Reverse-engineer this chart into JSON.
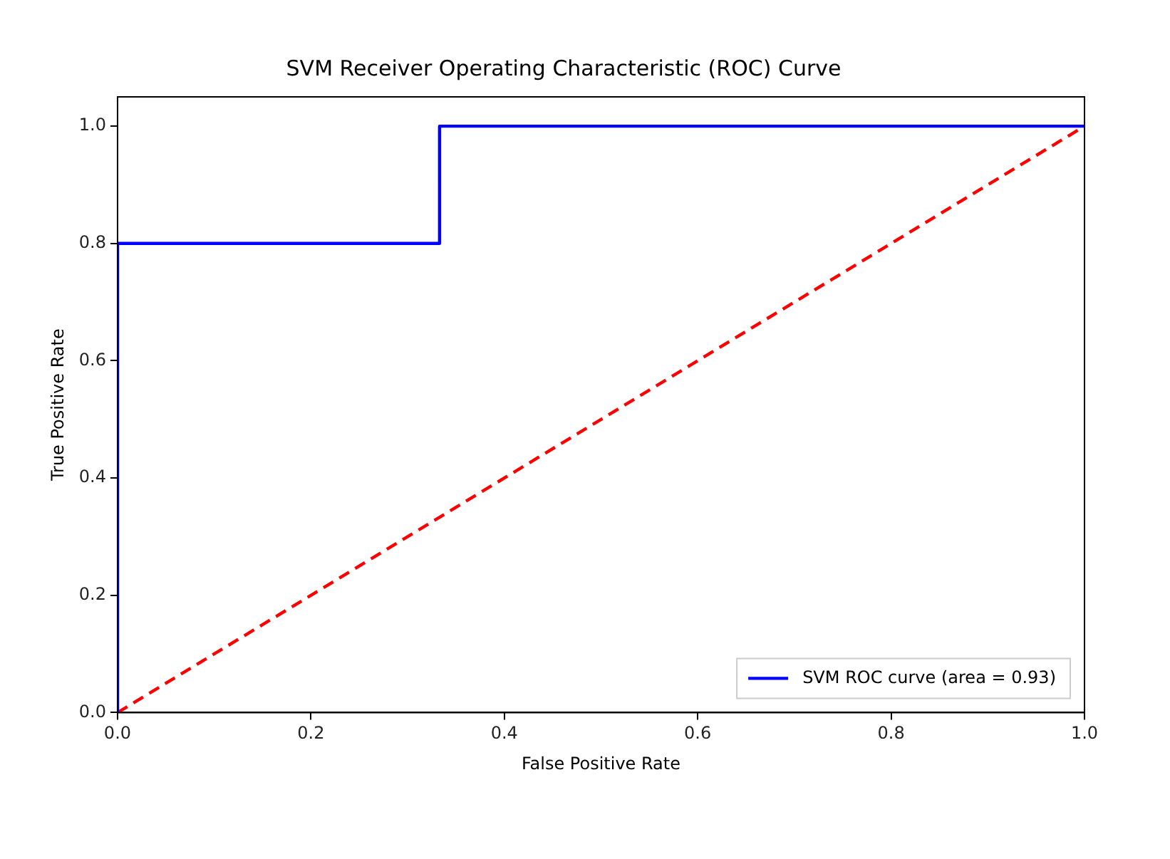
{
  "chart_data": {
    "type": "line",
    "title": "SVM Receiver Operating Characteristic (ROC) Curve",
    "xlabel": "False Positive Rate",
    "ylabel": "True Positive Rate",
    "series": [
      {
        "name": "SVM ROC curve (area = 0.93)",
        "color": "#0000ff",
        "x": [
          0,
          0,
          0.333,
          0.333,
          1
        ],
        "values": [
          0,
          0.8,
          0.8,
          1,
          1
        ],
        "line_style": "solid"
      },
      {
        "color": "#ff0000",
        "x": [
          0,
          1
        ],
        "values": [
          0,
          1
        ],
        "line_style": "dashed"
      }
    ],
    "xlim": [
      0,
      1
    ],
    "xticks": [
      {
        "value": 0,
        "label": "0.0"
      },
      {
        "value": 0.2,
        "label": "0.2"
      },
      {
        "value": 0.4,
        "label": "0.4"
      },
      {
        "value": 0.6,
        "label": "0.6"
      },
      {
        "value": 0.8,
        "label": "0.8"
      },
      {
        "value": 1,
        "label": "1.0"
      }
    ],
    "ylim": [
      0,
      1.05
    ],
    "yticks": [
      {
        "value": 0,
        "label": "0.0"
      },
      {
        "value": 0.2,
        "label": "0.2"
      },
      {
        "value": 0.4,
        "label": "0.4"
      },
      {
        "value": 0.6,
        "label": "0.6"
      },
      {
        "value": 0.8,
        "label": "0.8"
      },
      {
        "value": 1,
        "label": "1.0"
      }
    ],
    "legend": "bottom right",
    "grid": false,
    "marker": "none"
  }
}
